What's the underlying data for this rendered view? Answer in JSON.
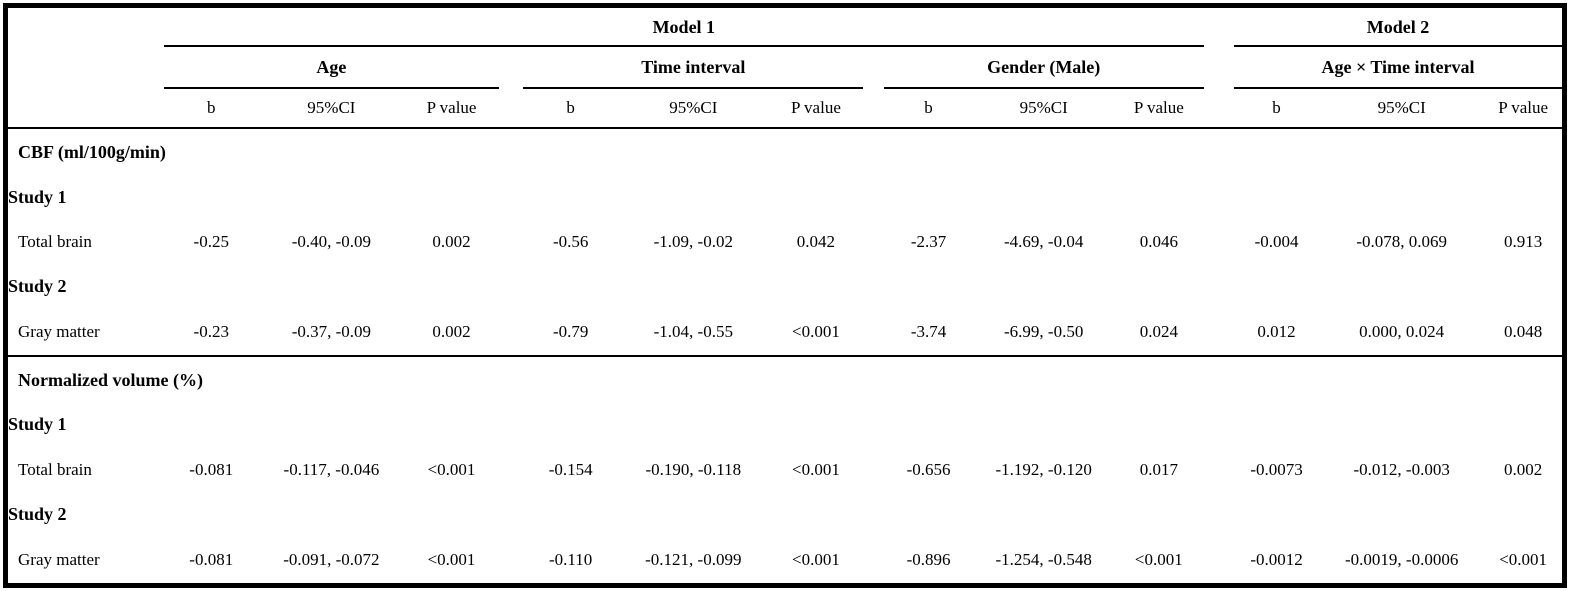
{
  "colors": {
    "border": "#000000",
    "background": "#ffffff",
    "text": "#000000"
  },
  "table": {
    "models": [
      {
        "label": "Model 1"
      },
      {
        "label": "Model 2"
      }
    ],
    "groups": [
      "Age",
      "Time interval",
      "Gender (Male)",
      "Age × Time interval"
    ],
    "subheaders": [
      "b",
      "95%CI",
      "P value"
    ],
    "sections": [
      {
        "title": "CBF (ml/100g/min)",
        "rows": [
          {
            "type": "study",
            "label": "Study 1"
          },
          {
            "type": "data",
            "label": "Total brain",
            "values": [
              "-0.25",
              "-0.40, -0.09",
              "0.002",
              "-0.56",
              "-1.09, -0.02",
              "0.042",
              "-2.37",
              "-4.69, -0.04",
              "0.046",
              "-0.004",
              "-0.078, 0.069",
              "0.913"
            ]
          },
          {
            "type": "study",
            "label": "Study 2"
          },
          {
            "type": "data",
            "label": "Gray matter",
            "values": [
              "-0.23",
              "-0.37, -0.09",
              "0.002",
              "-0.79",
              "-1.04, -0.55",
              "<0.001",
              "-3.74",
              "-6.99, -0.50",
              "0.024",
              "0.012",
              "0.000, 0.024",
              "0.048"
            ]
          }
        ]
      },
      {
        "title": "Normalized volume (%)",
        "rows": [
          {
            "type": "study",
            "label": "Study 1"
          },
          {
            "type": "data",
            "label": "Total brain",
            "values": [
              "-0.081",
              "-0.117, -0.046",
              "<0.001",
              "-0.154",
              "-0.190, -0.118",
              "<0.001",
              "-0.656",
              "-1.192, -0.120",
              "0.017",
              "-0.0073",
              "-0.012, -0.003",
              "0.002"
            ]
          },
          {
            "type": "study",
            "label": "Study 2"
          },
          {
            "type": "data",
            "label": "Gray matter",
            "values": [
              "-0.081",
              "-0.091, -0.072",
              "<0.001",
              "-0.110",
              "-0.121, -0.099",
              "<0.001",
              "-0.896",
              "-1.254, -0.548",
              "<0.001",
              "-0.0012",
              "-0.0019, -0.0006",
              "<0.001"
            ]
          }
        ]
      }
    ]
  }
}
